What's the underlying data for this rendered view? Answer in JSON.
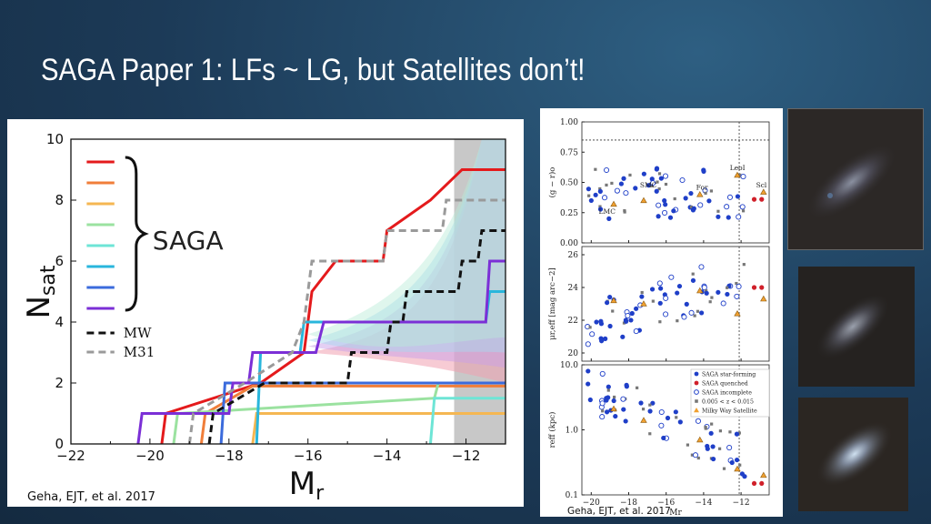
{
  "slide": {
    "title": "SAGA Paper 1: LFs ~ LG, but Satellites don’t!"
  },
  "left_chart": {
    "credit": "Geha, EJT, et al. 2017",
    "legend_group_label": "SAGA",
    "legend_mw": "MW",
    "legend_m31": "M31"
  },
  "right_chart": {
    "credit": "Geha, EJT, et al. 2017",
    "labels": {
      "leoI": "LeoI",
      "for": "For",
      "smc": "SMC",
      "lmc": "LMC",
      "scl": "Scl"
    },
    "legend": [
      "SAGA star-forming",
      "SAGA quenched",
      "SAGA incomplete",
      "0.005 < z < 0.015",
      "Milky Way Satellite"
    ]
  },
  "colors": {
    "saga_lines": [
      "#e41a1c",
      "#f07e3a",
      "#f5b752",
      "#9be2a0",
      "#6ee5d6",
      "#29b6dc",
      "#3b6bdc",
      "#7b2fd6"
    ],
    "mw": "#111111",
    "m31": "#9a9a9a",
    "sf": "#1f3fc8",
    "quenched": "#d0202a",
    "mw_sat": "#f0a030"
  },
  "chart_data": [
    {
      "type": "line",
      "xlabel": "Mr",
      "ylabel": "Nsat",
      "xlim": [
        -22,
        -11
      ],
      "ylim": [
        0,
        10
      ],
      "x_ticks": [
        -22,
        -20,
        -18,
        -16,
        -14,
        -12
      ],
      "y_ticks": [
        0,
        2,
        4,
        6,
        8,
        10
      ],
      "incompleteness_region": [
        -12.3,
        -11
      ],
      "series": [
        {
          "name": "MW",
          "steps": [
            [
              -18.5,
              0
            ],
            [
              -18.4,
              1
            ],
            [
              -17.1,
              2
            ],
            [
              -15,
              2
            ],
            [
              -14.9,
              3
            ],
            [
              -14,
              3
            ],
            [
              -13.9,
              4
            ],
            [
              -13.6,
              4
            ],
            [
              -13.5,
              5
            ],
            [
              -12.2,
              5
            ],
            [
              -12.1,
              6
            ],
            [
              -11.7,
              6
            ],
            [
              -11.6,
              7
            ],
            [
              -11,
              7
            ]
          ]
        },
        {
          "name": "M31",
          "steps": [
            [
              -19,
              0
            ],
            [
              -18.9,
              1
            ],
            [
              -17.6,
              2
            ],
            [
              -16.4,
              3
            ],
            [
              -16.1,
              4
            ],
            [
              -15.9,
              6
            ],
            [
              -14.1,
              6
            ],
            [
              -14,
              7
            ],
            [
              -12.6,
              7
            ],
            [
              -12.5,
              8
            ],
            [
              -11,
              8
            ]
          ]
        },
        {
          "values_note": "SAGA hosts",
          "steps_list": [
            [
              [
                -19.7,
                0
              ],
              [
                -19.6,
                1
              ],
              [
                -17.2,
                2
              ],
              [
                -16.1,
                3
              ],
              [
                -15.9,
                5
              ],
              [
                -15.3,
                6
              ],
              [
                -14.1,
                6
              ],
              [
                -14,
                7
              ],
              [
                -12.9,
                8
              ],
              [
                -12.1,
                9
              ],
              [
                -11,
                9
              ]
            ],
            [
              [
                -18.7,
                0
              ],
              [
                -18.6,
                1
              ],
              [
                -17.4,
                1.9
              ],
              [
                -11,
                1.9
              ]
            ],
            [
              [
                -17.4,
                0
              ],
              [
                -17.3,
                1
              ],
              [
                -11,
                1
              ]
            ],
            [
              [
                -19.4,
                0
              ],
              [
                -19.3,
                1
              ],
              [
                -12.8,
                1.5
              ],
              [
                -12.7,
                2
              ],
              [
                -11,
                2
              ]
            ],
            [
              [
                -12.9,
                0
              ],
              [
                -12.8,
                1.5
              ],
              [
                -11,
                1.5
              ]
            ],
            [
              [
                -17.3,
                0
              ],
              [
                -17.2,
                3
              ],
              [
                -16.2,
                3
              ],
              [
                -16.1,
                4
              ],
              [
                -11.5,
                4
              ],
              [
                -11.4,
                5
              ],
              [
                -11,
                5
              ]
            ],
            [
              [
                -18.2,
                0
              ],
              [
                -18.1,
                2
              ],
              [
                -17.0,
                2
              ],
              [
                -16.9,
                2
              ],
              [
                -11,
                2
              ]
            ],
            [
              [
                -20.3,
                0
              ],
              [
                -20.2,
                1
              ],
              [
                -18,
                1
              ],
              [
                -17.9,
                2
              ],
              [
                -17.5,
                2
              ],
              [
                -17.4,
                3
              ],
              [
                -15.8,
                3
              ],
              [
                -15.6,
                4
              ],
              [
                -11.5,
                4
              ],
              [
                -11.4,
                6
              ],
              [
                -11,
                6
              ]
            ]
          ]
        }
      ]
    },
    {
      "type": "scatter",
      "panels": [
        {
          "ylabel": "(g − r)o",
          "ylim": [
            0,
            1
          ],
          "y_ticks": [
            0.0,
            0.25,
            0.5,
            0.75,
            1.0
          ]
        },
        {
          "ylabel": "μr,eff [mag arc−2]",
          "ylim": [
            19.5,
            26.5
          ],
          "y_ticks": [
            20,
            22,
            24,
            26
          ]
        },
        {
          "ylabel": "reff (kpc)",
          "ylim": [
            0.1,
            10
          ],
          "log": true,
          "y_ticks": [
            0.1,
            1.0,
            10.0
          ]
        }
      ],
      "xlabel": "Mr",
      "xlim": [
        -20.5,
        -10.5
      ],
      "x_ticks": [
        -20,
        -18,
        -16,
        -14,
        -12
      ]
    }
  ]
}
